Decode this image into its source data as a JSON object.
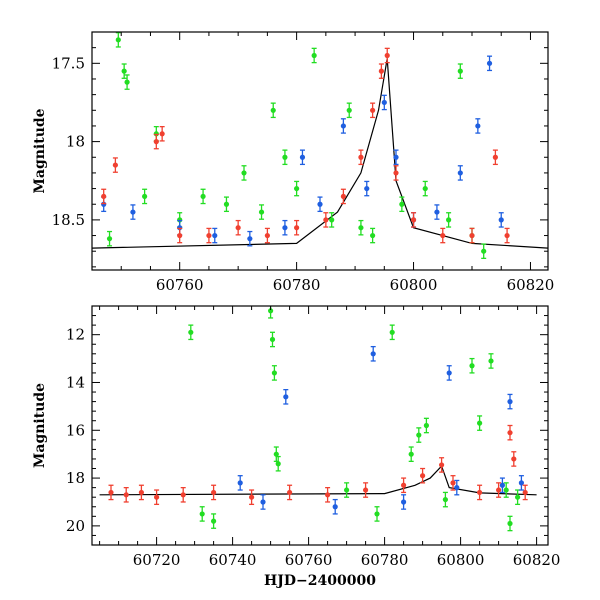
{
  "chart_data": [
    {
      "panel": "top",
      "type": "scatter",
      "ylabel": "Magnitude",
      "xlabel": "",
      "xlim": [
        60745,
        60823
      ],
      "ylim": [
        18.82,
        17.3
      ],
      "y_inverted": true,
      "x_ticks": [
        60760,
        60780,
        60800,
        60820
      ],
      "y_ticks": [
        17.5,
        18,
        18.5
      ],
      "x_tick_labels": [
        "60760",
        "60780",
        "60800",
        "60820"
      ],
      "y_tick_labels": [
        "17.5",
        "18",
        "18.5"
      ],
      "series": [
        {
          "color": "#22dd22",
          "points": [
            [
              60748,
              18.62
            ],
            [
              60749.5,
              17.35
            ],
            [
              60750.5,
              17.55
            ],
            [
              60751,
              17.62
            ],
            [
              60754,
              18.35
            ],
            [
              60756,
              17.95
            ],
            [
              60760,
              18.5
            ],
            [
              60764,
              18.35
            ],
            [
              60768,
              18.4
            ],
            [
              60771,
              18.2
            ],
            [
              60774,
              18.45
            ],
            [
              60776,
              17.8
            ],
            [
              60778,
              18.1
            ],
            [
              60780,
              18.3
            ],
            [
              60783,
              17.45
            ],
            [
              60786,
              18.5
            ],
            [
              60789,
              17.8
            ],
            [
              60791,
              18.55
            ],
            [
              60793,
              18.6
            ],
            [
              60798,
              18.4
            ],
            [
              60802,
              18.3
            ],
            [
              60806,
              18.5
            ],
            [
              60808,
              17.55
            ],
            [
              60810,
              18.6
            ],
            [
              60812,
              18.7
            ]
          ]
        },
        {
          "color": "#1f5fe0",
          "points": [
            [
              60747,
              18.4
            ],
            [
              60752,
              18.45
            ],
            [
              60760,
              18.55
            ],
            [
              60766,
              18.6
            ],
            [
              60772,
              18.62
            ],
            [
              60778,
              18.55
            ],
            [
              60781,
              18.1
            ],
            [
              60784,
              18.4
            ],
            [
              60788,
              17.9
            ],
            [
              60792,
              18.3
            ],
            [
              60795,
              17.75
            ],
            [
              60797,
              18.1
            ],
            [
              60800,
              18.5
            ],
            [
              60804,
              18.45
            ],
            [
              60808,
              18.2
            ],
            [
              60811,
              17.9
            ],
            [
              60813,
              17.5
            ],
            [
              60815,
              18.5
            ]
          ]
        },
        {
          "color": "#f04030",
          "points": [
            [
              60747,
              18.35
            ],
            [
              60749,
              18.15
            ],
            [
              60756,
              18.0
            ],
            [
              60757,
              17.95
            ],
            [
              60760,
              18.6
            ],
            [
              60765,
              18.6
            ],
            [
              60770,
              18.55
            ],
            [
              60775,
              18.6
            ],
            [
              60780,
              18.55
            ],
            [
              60785,
              18.5
            ],
            [
              60788,
              18.35
            ],
            [
              60791,
              18.1
            ],
            [
              60793,
              17.8
            ],
            [
              60794.5,
              17.55
            ],
            [
              60795.5,
              17.45
            ],
            [
              60797,
              18.2
            ],
            [
              60800,
              18.5
            ],
            [
              60805,
              18.6
            ],
            [
              60810,
              18.6
            ],
            [
              60814,
              18.1
            ],
            [
              60816,
              18.6
            ]
          ]
        }
      ],
      "model_curve": [
        [
          60745,
          18.68
        ],
        [
          60780,
          18.65
        ],
        [
          60787,
          18.45
        ],
        [
          60791,
          18.2
        ],
        [
          60794,
          17.8
        ],
        [
          60795.5,
          17.47
        ],
        [
          60797,
          18.25
        ],
        [
          60800,
          18.55
        ],
        [
          60810,
          18.65
        ],
        [
          60823,
          18.68
        ]
      ]
    },
    {
      "panel": "bottom",
      "type": "scatter",
      "ylabel": "Magnitude",
      "xlabel": "HJD−2400000",
      "xlim": [
        60703,
        60823
      ],
      "ylim": [
        20.8,
        10.8
      ],
      "y_inverted": true,
      "x_ticks": [
        60720,
        60740,
        60760,
        60780,
        60800,
        60820
      ],
      "y_ticks": [
        12,
        14,
        16,
        18,
        20
      ],
      "x_tick_labels": [
        "60720",
        "60740",
        "60760",
        "60780",
        "60800",
        "60820"
      ],
      "y_tick_labels": [
        "12",
        "14",
        "16",
        "18",
        "20"
      ],
      "series": [
        {
          "color": "#22dd22",
          "points": [
            [
              60729,
              11.9
            ],
            [
              60732,
              19.5
            ],
            [
              60735,
              19.8
            ],
            [
              60750,
              11.0
            ],
            [
              60750.5,
              12.2
            ],
            [
              60751,
              13.6
            ],
            [
              60751.5,
              17.0
            ],
            [
              60752,
              17.4
            ],
            [
              60770,
              18.5
            ],
            [
              60778,
              19.5
            ],
            [
              60782,
              11.9
            ],
            [
              60787,
              17.0
            ],
            [
              60789,
              16.2
            ],
            [
              60791,
              15.8
            ],
            [
              60796,
              18.9
            ],
            [
              60803,
              13.3
            ],
            [
              60805,
              15.7
            ],
            [
              60808,
              13.1
            ],
            [
              60812,
              18.5
            ],
            [
              60813,
              19.9
            ],
            [
              60815,
              18.8
            ]
          ]
        },
        {
          "color": "#1f5fe0",
          "points": [
            [
              60742,
              18.2
            ],
            [
              60748,
              19.0
            ],
            [
              60754,
              14.6
            ],
            [
              60767,
              19.2
            ],
            [
              60777,
              12.8
            ],
            [
              60785,
              19.0
            ],
            [
              60797,
              13.6
            ],
            [
              60799,
              18.4
            ],
            [
              60811,
              18.3
            ],
            [
              60813,
              14.8
            ],
            [
              60816,
              18.2
            ]
          ]
        },
        {
          "color": "#f04030",
          "points": [
            [
              60708,
              18.6
            ],
            [
              60712,
              18.7
            ],
            [
              60716,
              18.6
            ],
            [
              60720,
              18.8
            ],
            [
              60727,
              18.7
            ],
            [
              60735,
              18.6
            ],
            [
              60745,
              18.8
            ],
            [
              60755,
              18.6
            ],
            [
              60765,
              18.7
            ],
            [
              60775,
              18.5
            ],
            [
              60785,
              18.3
            ],
            [
              60790,
              17.9
            ],
            [
              60795,
              17.45
            ],
            [
              60798,
              18.2
            ],
            [
              60805,
              18.6
            ],
            [
              60810,
              18.5
            ],
            [
              60813,
              16.1
            ],
            [
              60814,
              17.2
            ],
            [
              60817,
              18.6
            ]
          ]
        }
      ],
      "model_curve": [
        [
          60705,
          18.7
        ],
        [
          60780,
          18.65
        ],
        [
          60788,
          18.3
        ],
        [
          60792,
          18.0
        ],
        [
          60795,
          17.5
        ],
        [
          60797,
          18.4
        ],
        [
          60805,
          18.62
        ],
        [
          60820,
          18.7
        ]
      ]
    }
  ]
}
